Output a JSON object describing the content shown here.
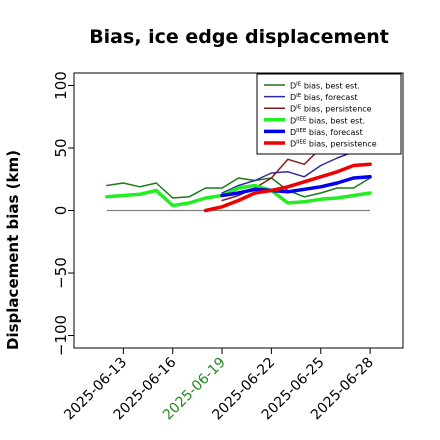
{
  "chart_data": {
    "type": "line",
    "title": "Bias, ice edge displacement",
    "xlabel": "",
    "ylabel": "Displacement bias (km)",
    "ylim": [
      -110,
      110
    ],
    "xlim": [
      "2025-06-10",
      "2025-06-30"
    ],
    "yticks": [
      -100,
      -50,
      0,
      50,
      100
    ],
    "ytick_labels": [
      "−100",
      "−50",
      "0",
      "50",
      "100"
    ],
    "xticks": [
      "2025-06-13",
      "2025-06-16",
      "2025-06-19",
      "2025-06-22",
      "2025-06-25",
      "2025-06-28"
    ],
    "xtick_labels": [
      "2025-06-13",
      "2025-06-16",
      "2025-06-19",
      "2025-06-22",
      "2025-06-25",
      "2025-06-28"
    ],
    "xtick_colors": [
      "#000000",
      "#000000",
      "#228B22",
      "#000000",
      "#000000",
      "#000000"
    ],
    "grid": false,
    "legend_position": "top-right",
    "zero_line": {
      "y": 0,
      "color": "#808080"
    },
    "series": [
      {
        "name": "D^IE bias, best est.",
        "legend_main": "D",
        "legend_sup": "IE",
        "legend_rest": " bias, best est.",
        "color": "#1a7a1a",
        "width": 1.5,
        "x": [
          "2025-06-12",
          "2025-06-13",
          "2025-06-14",
          "2025-06-15",
          "2025-06-16",
          "2025-06-17",
          "2025-06-18",
          "2025-06-19",
          "2025-06-20",
          "2025-06-21",
          "2025-06-22",
          "2025-06-23",
          "2025-06-24",
          "2025-06-25",
          "2025-06-26",
          "2025-06-27",
          "2025-06-28"
        ],
        "y": [
          20,
          22,
          19,
          22,
          10,
          11,
          18,
          18,
          26,
          24,
          26,
          16,
          11,
          14,
          18,
          18,
          26
        ]
      },
      {
        "name": "D^IE bias, forecast",
        "legend_main": "D",
        "legend_sup": "IE",
        "legend_rest": " bias, forecast",
        "color": "#2a2aa8",
        "width": 1.5,
        "x": [
          "2025-06-19",
          "2025-06-20",
          "2025-06-21",
          "2025-06-22",
          "2025-06-23",
          "2025-06-24",
          "2025-06-25",
          "2025-06-26",
          "2025-06-27",
          "2025-06-28"
        ],
        "y": [
          14,
          20,
          24,
          30,
          31,
          27,
          36,
          42,
          47,
          53
        ]
      },
      {
        "name": "D^IE bias, persistence",
        "legend_main": "D",
        "legend_sup": "IE",
        "legend_rest": " bias, persistence",
        "color": "#8b1a1a",
        "width": 1.5,
        "x": [
          "2025-06-19",
          "2025-06-20",
          "2025-06-21",
          "2025-06-22",
          "2025-06-23",
          "2025-06-24",
          "2025-06-25",
          "2025-06-26",
          "2025-06-27",
          "2025-06-28"
        ],
        "y": [
          8,
          12,
          18,
          26,
          41,
          37,
          50,
          58,
          60,
          68
        ]
      },
      {
        "name": "D^IIEE bias, best est.",
        "legend_main": "D",
        "legend_sup": "IIEE",
        "legend_rest": " bias, best est.",
        "color": "#22ee22",
        "width": 3.5,
        "x": [
          "2025-06-12",
          "2025-06-13",
          "2025-06-14",
          "2025-06-15",
          "2025-06-16",
          "2025-06-17",
          "2025-06-18",
          "2025-06-19",
          "2025-06-20",
          "2025-06-21",
          "2025-06-22",
          "2025-06-23",
          "2025-06-24",
          "2025-06-25",
          "2025-06-26",
          "2025-06-27",
          "2025-06-28"
        ],
        "y": [
          11,
          12,
          13,
          16,
          4,
          6,
          10,
          12,
          18,
          20,
          16,
          6,
          7,
          9,
          10,
          12,
          14
        ]
      },
      {
        "name": "D^IIEE bias, forecast",
        "legend_main": "D",
        "legend_sup": "IIEE",
        "legend_rest": " bias, forecast",
        "color": "#0000ee",
        "width": 3.5,
        "x": [
          "2025-06-19",
          "2025-06-20",
          "2025-06-21",
          "2025-06-22",
          "2025-06-23",
          "2025-06-24",
          "2025-06-25",
          "2025-06-26",
          "2025-06-27",
          "2025-06-28"
        ],
        "y": [
          12,
          14,
          17,
          16,
          15,
          17,
          19,
          22,
          26,
          27
        ]
      },
      {
        "name": "D^IIEE bias, persistence",
        "legend_main": "D",
        "legend_sup": "IIEE",
        "legend_rest": " bias, persistence",
        "color": "#ee0000",
        "width": 3.5,
        "x": [
          "2025-06-18",
          "2025-06-19",
          "2025-06-20",
          "2025-06-21",
          "2025-06-22",
          "2025-06-23",
          "2025-06-24",
          "2025-06-25",
          "2025-06-26",
          "2025-06-27",
          "2025-06-28"
        ],
        "y": [
          0,
          3,
          8,
          14,
          16,
          19,
          23,
          27,
          31,
          36,
          37
        ]
      }
    ]
  }
}
